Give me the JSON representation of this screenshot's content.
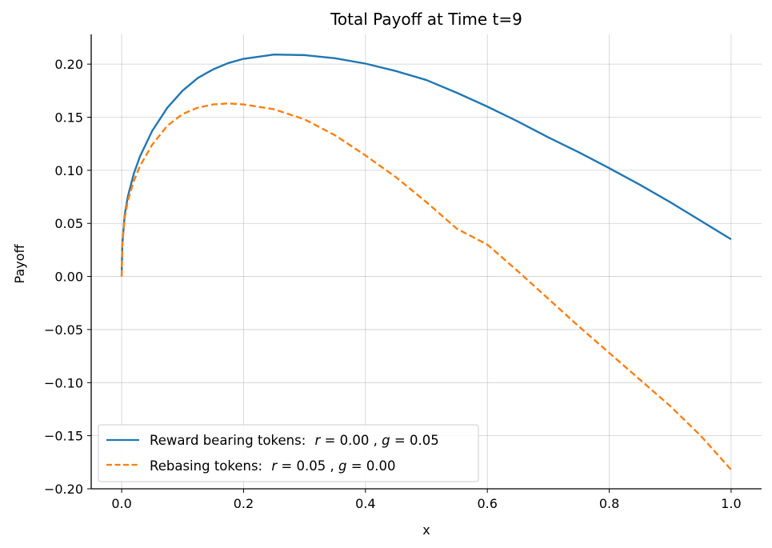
{
  "chart_data": {
    "type": "line",
    "title": "Total Payoff at Time t=9",
    "xlabel": "x",
    "ylabel": "Payoff",
    "xlim": [
      -0.05,
      1.05
    ],
    "ylim": [
      -0.2,
      0.228
    ],
    "x_ticks": [
      0.0,
      0.2,
      0.4,
      0.6,
      0.8,
      1.0
    ],
    "x_tick_labels": [
      "0.0",
      "0.2",
      "0.4",
      "0.6",
      "0.8",
      "1.0"
    ],
    "y_ticks": [
      0.2,
      0.15,
      0.1,
      0.05,
      0.0,
      -0.05,
      -0.1,
      -0.15,
      -0.2
    ],
    "y_tick_labels": [
      "0.20",
      "0.15",
      "0.10",
      "0.05",
      "0.00",
      "−0.05",
      "−0.10",
      "−0.15",
      "−0.20"
    ],
    "grid": true,
    "legend": {
      "placement": "lower-left"
    },
    "x": [
      0.0,
      0.001,
      0.005,
      0.01,
      0.02,
      0.03,
      0.05,
      0.075,
      0.1,
      0.125,
      0.15,
      0.175,
      0.2,
      0.25,
      0.3,
      0.35,
      0.4,
      0.45,
      0.5,
      0.55,
      0.6,
      0.65,
      0.7,
      0.75,
      0.8,
      0.85,
      0.9,
      0.95,
      1.0
    ],
    "series": [
      {
        "name": "Reward bearing tokens:",
        "legend_math": {
          "r": "0.00",
          "g": "0.05"
        },
        "color": "#1f77b4",
        "dash": "solid",
        "values": [
          0.0,
          0.03,
          0.058,
          0.075,
          0.097,
          0.113,
          0.137,
          0.159,
          0.175,
          0.187,
          0.195,
          0.201,
          0.205,
          0.209,
          0.2085,
          0.2055,
          0.2005,
          0.1935,
          0.185,
          0.173,
          0.16,
          0.146,
          0.131,
          0.117,
          0.102,
          0.0865,
          0.07,
          0.0525,
          0.035
        ]
      },
      {
        "name": "Rebasing tokens:",
        "legend_math": {
          "r": "0.05",
          "g": "0.00"
        },
        "color": "#ff7f0e",
        "dash": "dashed",
        "values": [
          0.0,
          0.03,
          0.055,
          0.071,
          0.09,
          0.104,
          0.124,
          0.142,
          0.153,
          0.159,
          0.162,
          0.163,
          0.162,
          0.1575,
          0.148,
          0.133,
          0.114,
          0.0935,
          0.07,
          0.045,
          0.03,
          0.005,
          -0.021,
          -0.047,
          -0.072,
          -0.097,
          -0.122,
          -0.15,
          -0.182
        ]
      }
    ]
  }
}
